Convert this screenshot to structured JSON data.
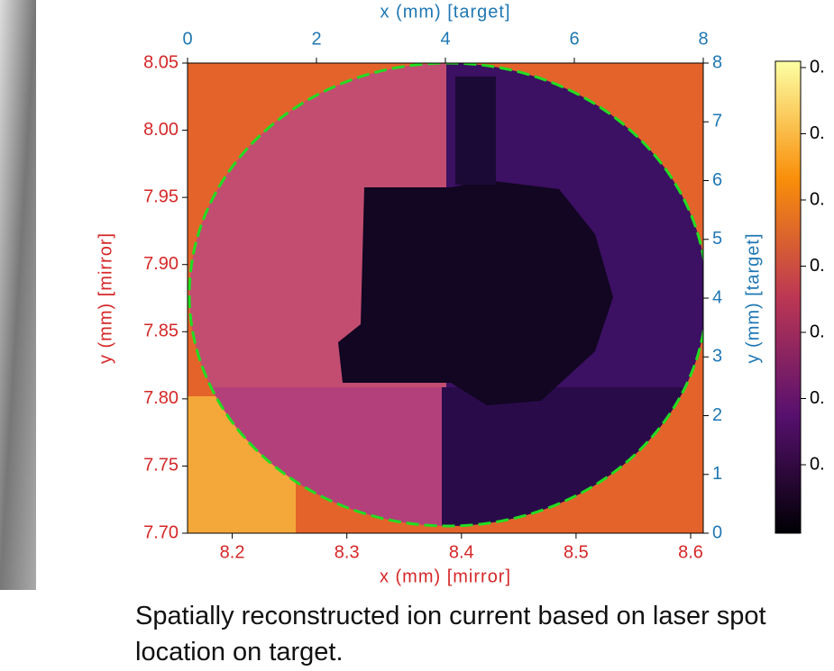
{
  "chart_data": {
    "type": "heatmap",
    "xlabel": "x (mm) [mirror]",
    "x2label": "x (mm) [target]",
    "ylabel": "y (mm) [mirror]",
    "y2label": "y (mm) [target]",
    "xlim": [
      8.161,
      8.611
    ],
    "xticks": [
      8.2,
      8.3,
      8.4,
      8.5,
      8.6
    ],
    "x2lim": [
      0,
      8
    ],
    "x2ticks": [
      0,
      2,
      4,
      6,
      8
    ],
    "ylim": [
      7.7,
      8.05
    ],
    "yticks": [
      {
        "value": 7.7,
        "label": "7.70"
      },
      {
        "value": 7.75,
        "label": "7.75"
      },
      {
        "value": 7.8,
        "label": "7.80"
      },
      {
        "value": 7.85,
        "label": "7.85"
      },
      {
        "value": 7.9,
        "label": "7.90"
      },
      {
        "value": 7.95,
        "label": "7.95"
      },
      {
        "value": 8.0,
        "label": "8.00"
      },
      {
        "value": 8.05,
        "label": "8.05"
      }
    ],
    "y2lim": [
      0,
      8
    ],
    "y2ticks": [
      0,
      1,
      2,
      3,
      4,
      5,
      6,
      7,
      8
    ],
    "mirror_color": "#d62728",
    "target_color": "#1f77b4",
    "colorbar": {
      "tick_labels": [
        "0.",
        "0.",
        "0.",
        "0.",
        "0.",
        "0.",
        "0."
      ]
    }
  },
  "caption": "Spatially reconstructed ion current based on laser spot location on target."
}
